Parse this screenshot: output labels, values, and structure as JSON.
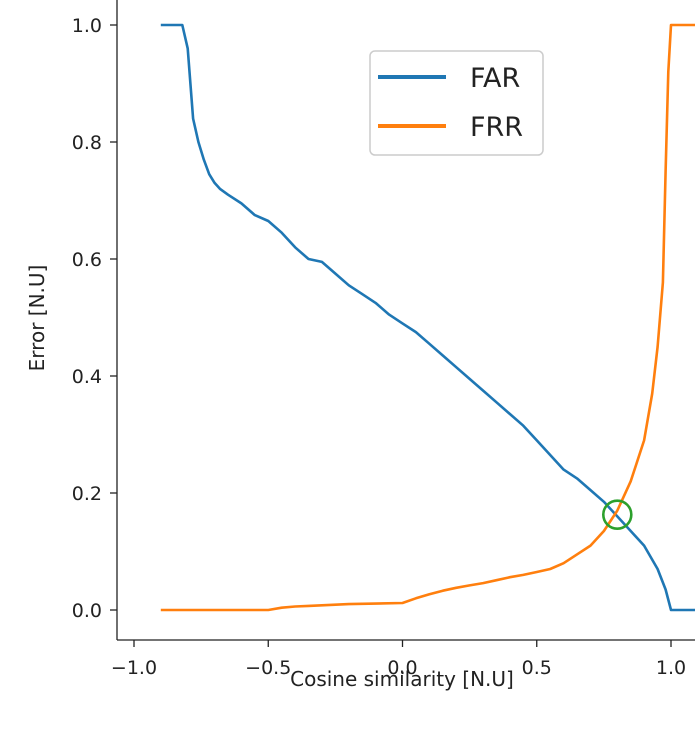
{
  "chart_data": {
    "type": "line",
    "xlabel": "Cosine similarity [N.U]",
    "ylabel": "Error [N.U]",
    "xlim": [
      -1.1,
      1.1
    ],
    "ylim": [
      -0.05,
      1.05
    ],
    "x_ticks": [
      -1.0,
      -0.5,
      0.0,
      0.5,
      1.0
    ],
    "x_tick_labels": [
      "−1.0",
      "−0.5",
      "0.0",
      "0.5",
      "1.0"
    ],
    "y_ticks": [
      0.0,
      0.2,
      0.4,
      0.6,
      0.8,
      1.0
    ],
    "y_tick_labels": [
      "0.0",
      "0.2",
      "0.4",
      "0.6",
      "0.8",
      "1.0"
    ],
    "grid": false,
    "legend_position": "top-center",
    "series": [
      {
        "name": "FAR",
        "color": "#1f77b4",
        "x": [
          -0.9,
          -0.82,
          -0.8,
          -0.78,
          -0.76,
          -0.74,
          -0.72,
          -0.7,
          -0.68,
          -0.65,
          -0.6,
          -0.55,
          -0.5,
          -0.45,
          -0.4,
          -0.35,
          -0.3,
          -0.25,
          -0.2,
          -0.15,
          -0.1,
          -0.05,
          0.0,
          0.05,
          0.1,
          0.15,
          0.2,
          0.25,
          0.3,
          0.35,
          0.4,
          0.45,
          0.5,
          0.55,
          0.6,
          0.65,
          0.7,
          0.75,
          0.8,
          0.85,
          0.9,
          0.95,
          0.98,
          1.0,
          1.1
        ],
        "y": [
          1.0,
          1.0,
          0.96,
          0.84,
          0.8,
          0.77,
          0.745,
          0.73,
          0.72,
          0.71,
          0.695,
          0.675,
          0.665,
          0.645,
          0.62,
          0.6,
          0.595,
          0.575,
          0.555,
          0.54,
          0.525,
          0.505,
          0.49,
          0.475,
          0.455,
          0.435,
          0.415,
          0.395,
          0.375,
          0.355,
          0.335,
          0.315,
          0.29,
          0.265,
          0.24,
          0.225,
          0.205,
          0.185,
          0.16,
          0.135,
          0.11,
          0.07,
          0.035,
          0.0,
          0.0
        ]
      },
      {
        "name": "FRR",
        "color": "#ff7f0e",
        "x": [
          -0.9,
          -0.5,
          -0.45,
          -0.4,
          -0.35,
          -0.3,
          -0.25,
          -0.2,
          -0.1,
          0.0,
          0.05,
          0.1,
          0.15,
          0.2,
          0.25,
          0.3,
          0.35,
          0.4,
          0.45,
          0.5,
          0.55,
          0.6,
          0.65,
          0.7,
          0.75,
          0.8,
          0.85,
          0.9,
          0.93,
          0.95,
          0.97,
          0.98,
          0.99,
          1.0,
          1.1
        ],
        "y": [
          0.0,
          0.0,
          0.004,
          0.006,
          0.007,
          0.008,
          0.009,
          0.01,
          0.011,
          0.012,
          0.02,
          0.027,
          0.033,
          0.038,
          0.042,
          0.046,
          0.051,
          0.056,
          0.06,
          0.065,
          0.07,
          0.08,
          0.095,
          0.11,
          0.135,
          0.17,
          0.22,
          0.29,
          0.37,
          0.45,
          0.56,
          0.75,
          0.92,
          1.0,
          1.0
        ]
      }
    ],
    "annotations": [
      {
        "type": "circle-marker",
        "x": 0.8,
        "y": 0.163,
        "color": "#2ca02c",
        "meaning": "equal error rate crossing"
      }
    ]
  }
}
